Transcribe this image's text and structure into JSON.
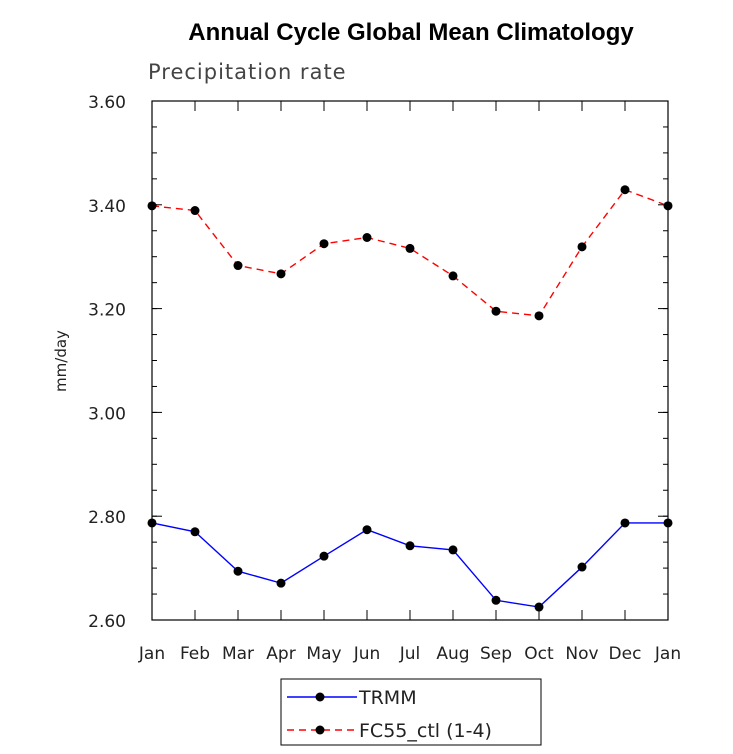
{
  "chart_data": {
    "type": "line",
    "title": "Annual Cycle Global Mean Climatology",
    "subtitle": "Precipitation rate",
    "xlabel": "",
    "ylabel": "mm/day",
    "categories": [
      "Jan",
      "Feb",
      "Mar",
      "Apr",
      "May",
      "Jun",
      "Jul",
      "Aug",
      "Sep",
      "Oct",
      "Nov",
      "Dec",
      "Jan"
    ],
    "yticks": [
      "2.60",
      "2.80",
      "3.00",
      "3.20",
      "3.40",
      "3.60"
    ],
    "ylim": [
      2.6,
      3.6
    ],
    "grid": false,
    "legend_position": "bottom",
    "series": [
      {
        "name": "TRMM",
        "color": "#0000ff",
        "line_style": "solid",
        "marker": "filled-circle",
        "values": [
          2.787,
          2.77,
          2.694,
          2.671,
          2.723,
          2.774,
          2.743,
          2.735,
          2.638,
          2.625,
          2.702,
          2.787,
          2.787
        ]
      },
      {
        "name": "FC55_ctl (1-4)",
        "color": "#ff0000",
        "line_style": "dashed",
        "marker": "filled-circle",
        "values": [
          3.398,
          3.389,
          3.283,
          3.267,
          3.325,
          3.337,
          3.316,
          3.263,
          3.195,
          3.186,
          3.319,
          3.429,
          3.398
        ]
      }
    ]
  }
}
